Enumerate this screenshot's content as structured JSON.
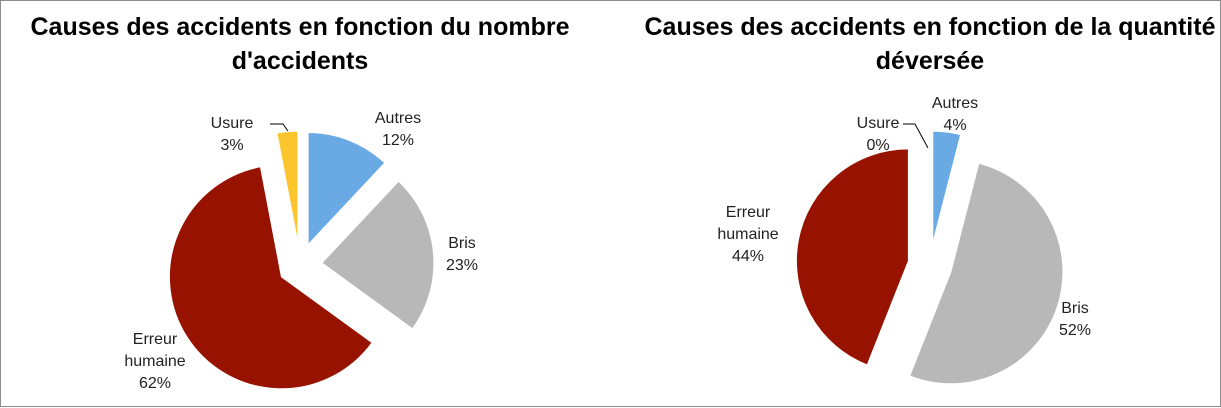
{
  "chart_data": [
    {
      "type": "pie",
      "title": "Causes des accidents en fonction du nombre d'accidents",
      "categories": [
        "Autres",
        "Bris",
        "Erreur humaine",
        "Usure"
      ],
      "values": [
        12,
        23,
        62,
        3
      ],
      "value_labels": [
        "12%",
        "23%",
        "62%",
        "3%"
      ],
      "colors": [
        "#6aaae4",
        "#b8b8b8",
        "#981200",
        "#fbc52e"
      ]
    },
    {
      "type": "pie",
      "title": "Causes des accidents en fonction de la quantité déversée",
      "categories": [
        "Autres",
        "Bris",
        "Erreur humaine",
        "Usure"
      ],
      "values": [
        4,
        52,
        44,
        0
      ],
      "value_labels": [
        "4%",
        "52%",
        "44%",
        "0%"
      ],
      "colors": [
        "#6aaae4",
        "#b8b8b8",
        "#981200",
        "#fbc52e"
      ]
    }
  ]
}
